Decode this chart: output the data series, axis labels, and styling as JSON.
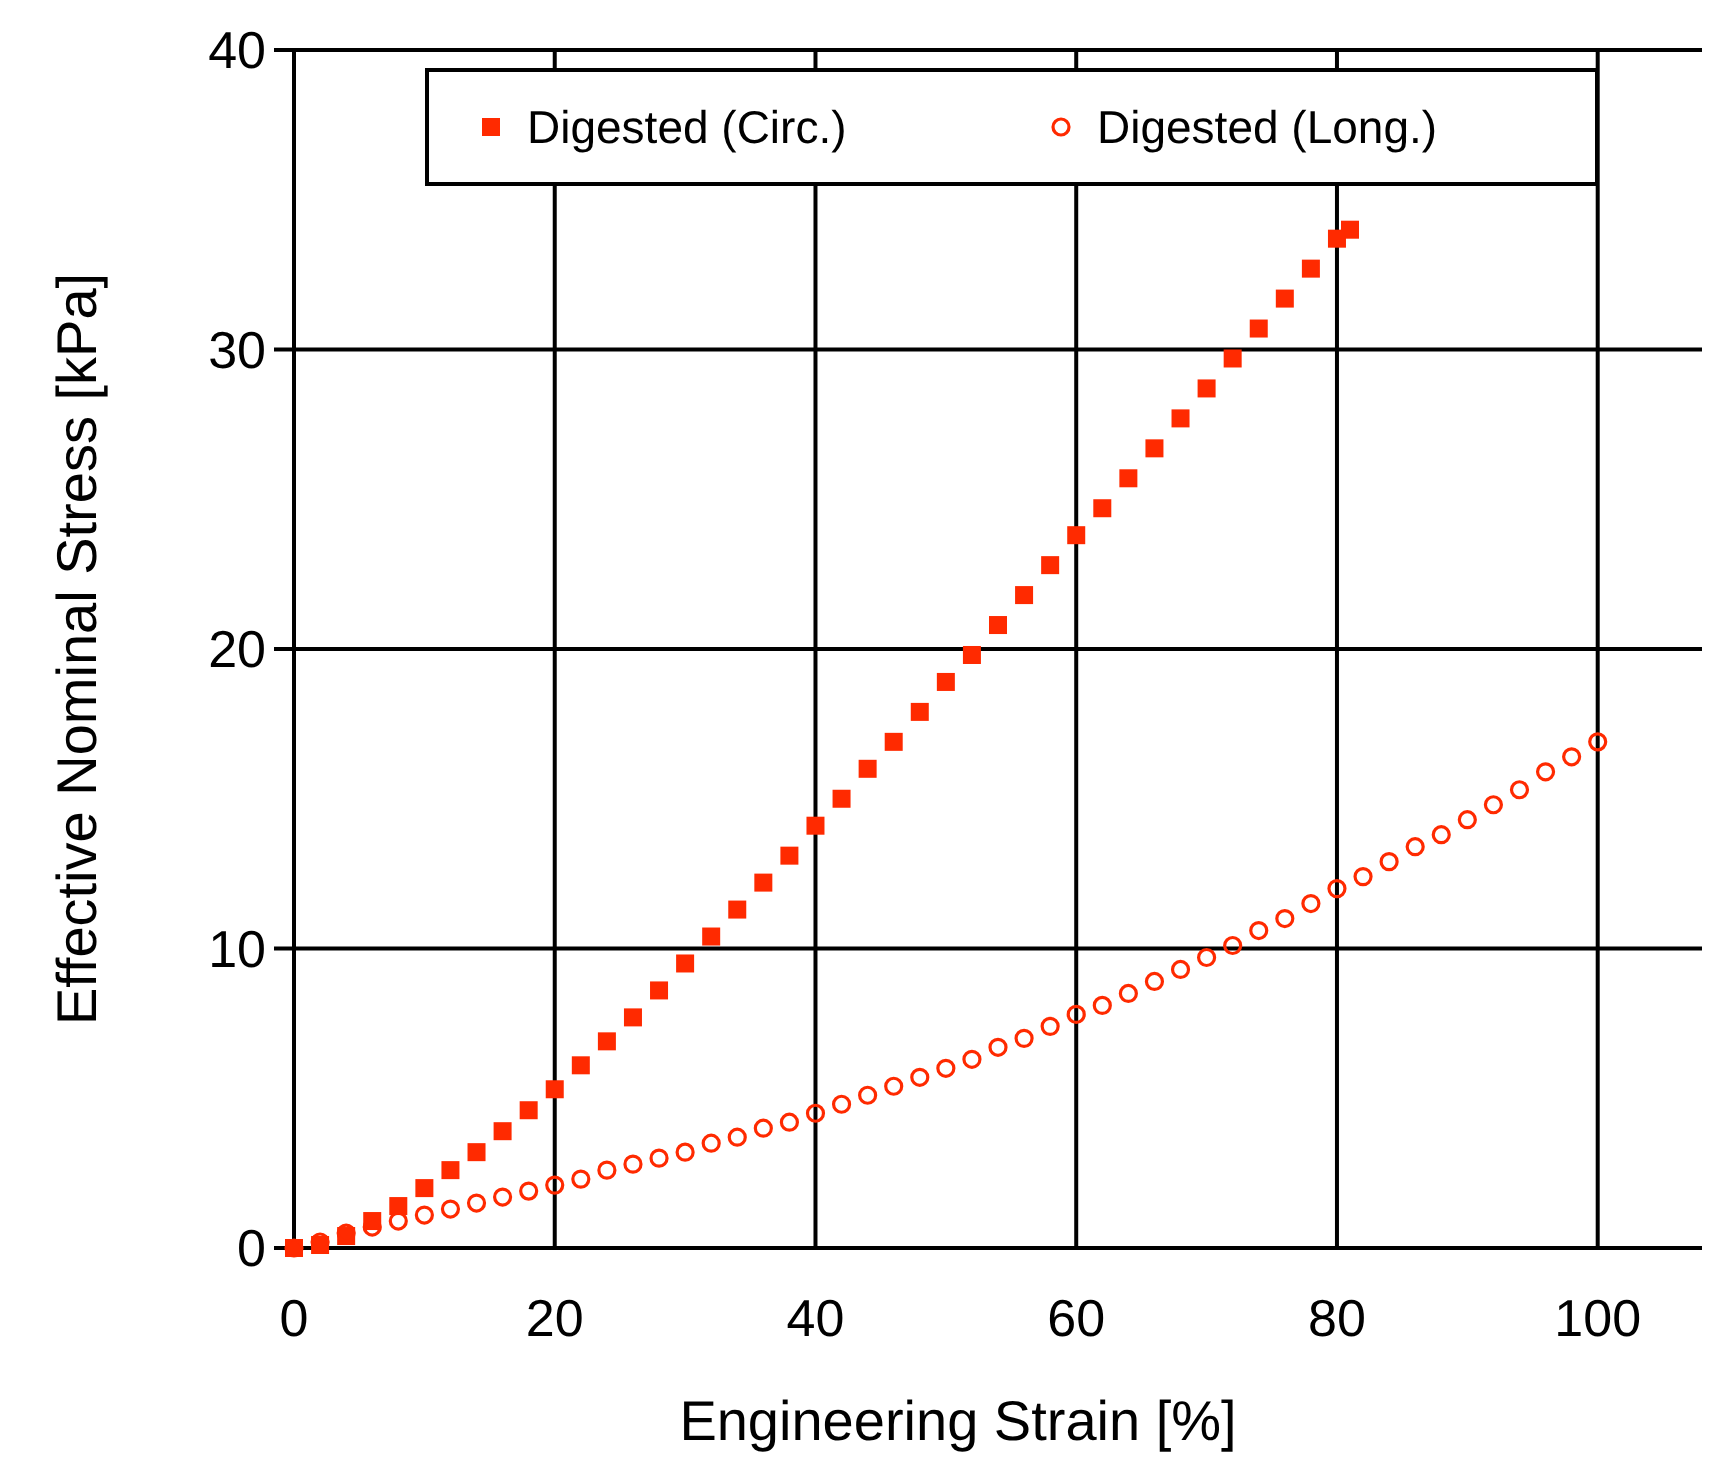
{
  "chart_data": {
    "type": "scatter",
    "xlabel": "Engineering Strain [%]",
    "ylabel": "Effective Nominal Stress [kPa]",
    "xlim": [
      0,
      108
    ],
    "xticks": [
      0,
      20,
      40,
      60,
      80,
      100
    ],
    "ylim": [
      0,
      40
    ],
    "yticks": [
      0,
      10,
      20,
      30,
      40
    ],
    "grid": true,
    "legend": "top",
    "series": [
      {
        "name": "Digested (Circ.)",
        "color": "#ff2a00",
        "marker": "square",
        "x": [
          0,
          2,
          4,
          6,
          8,
          10,
          12,
          14,
          16,
          18,
          20,
          22,
          24,
          26,
          28,
          30,
          32,
          34,
          36,
          38,
          40,
          42,
          44,
          46,
          48,
          50,
          52,
          54,
          56,
          58,
          60,
          62,
          64,
          66,
          68,
          70,
          72,
          74,
          76,
          78,
          80,
          81
        ],
        "values": [
          0,
          0.1,
          0.4,
          0.9,
          1.4,
          2.0,
          2.6,
          3.2,
          3.9,
          4.6,
          5.3,
          6.1,
          6.9,
          7.7,
          8.6,
          9.5,
          10.4,
          11.3,
          12.2,
          13.1,
          14.1,
          15.0,
          16.0,
          16.9,
          17.9,
          18.9,
          19.8,
          20.8,
          21.8,
          22.8,
          23.8,
          24.7,
          25.7,
          26.7,
          27.7,
          28.7,
          29.7,
          30.7,
          31.7,
          32.7,
          33.7,
          34.0
        ]
      },
      {
        "name": "Digested (Long.)",
        "color": "#ff2a00",
        "marker": "circle",
        "x": [
          0,
          2,
          4,
          6,
          8,
          10,
          12,
          14,
          16,
          18,
          20,
          22,
          24,
          26,
          28,
          30,
          32,
          34,
          36,
          38,
          40,
          42,
          44,
          46,
          48,
          50,
          52,
          54,
          56,
          58,
          60,
          62,
          64,
          66,
          68,
          70,
          72,
          74,
          76,
          78,
          80,
          82,
          84,
          86,
          88,
          90,
          92,
          94,
          96,
          98,
          100
        ],
        "values": [
          0,
          0.2,
          0.5,
          0.7,
          0.9,
          1.1,
          1.3,
          1.5,
          1.7,
          1.9,
          2.1,
          2.3,
          2.6,
          2.8,
          3.0,
          3.2,
          3.5,
          3.7,
          4.0,
          4.2,
          4.5,
          4.8,
          5.1,
          5.4,
          5.7,
          6.0,
          6.3,
          6.7,
          7.0,
          7.4,
          7.8,
          8.1,
          8.5,
          8.9,
          9.3,
          9.7,
          10.1,
          10.6,
          11.0,
          11.5,
          12.0,
          12.4,
          12.9,
          13.4,
          13.8,
          14.3,
          14.8,
          15.3,
          15.9,
          16.4,
          16.9
        ]
      }
    ]
  }
}
